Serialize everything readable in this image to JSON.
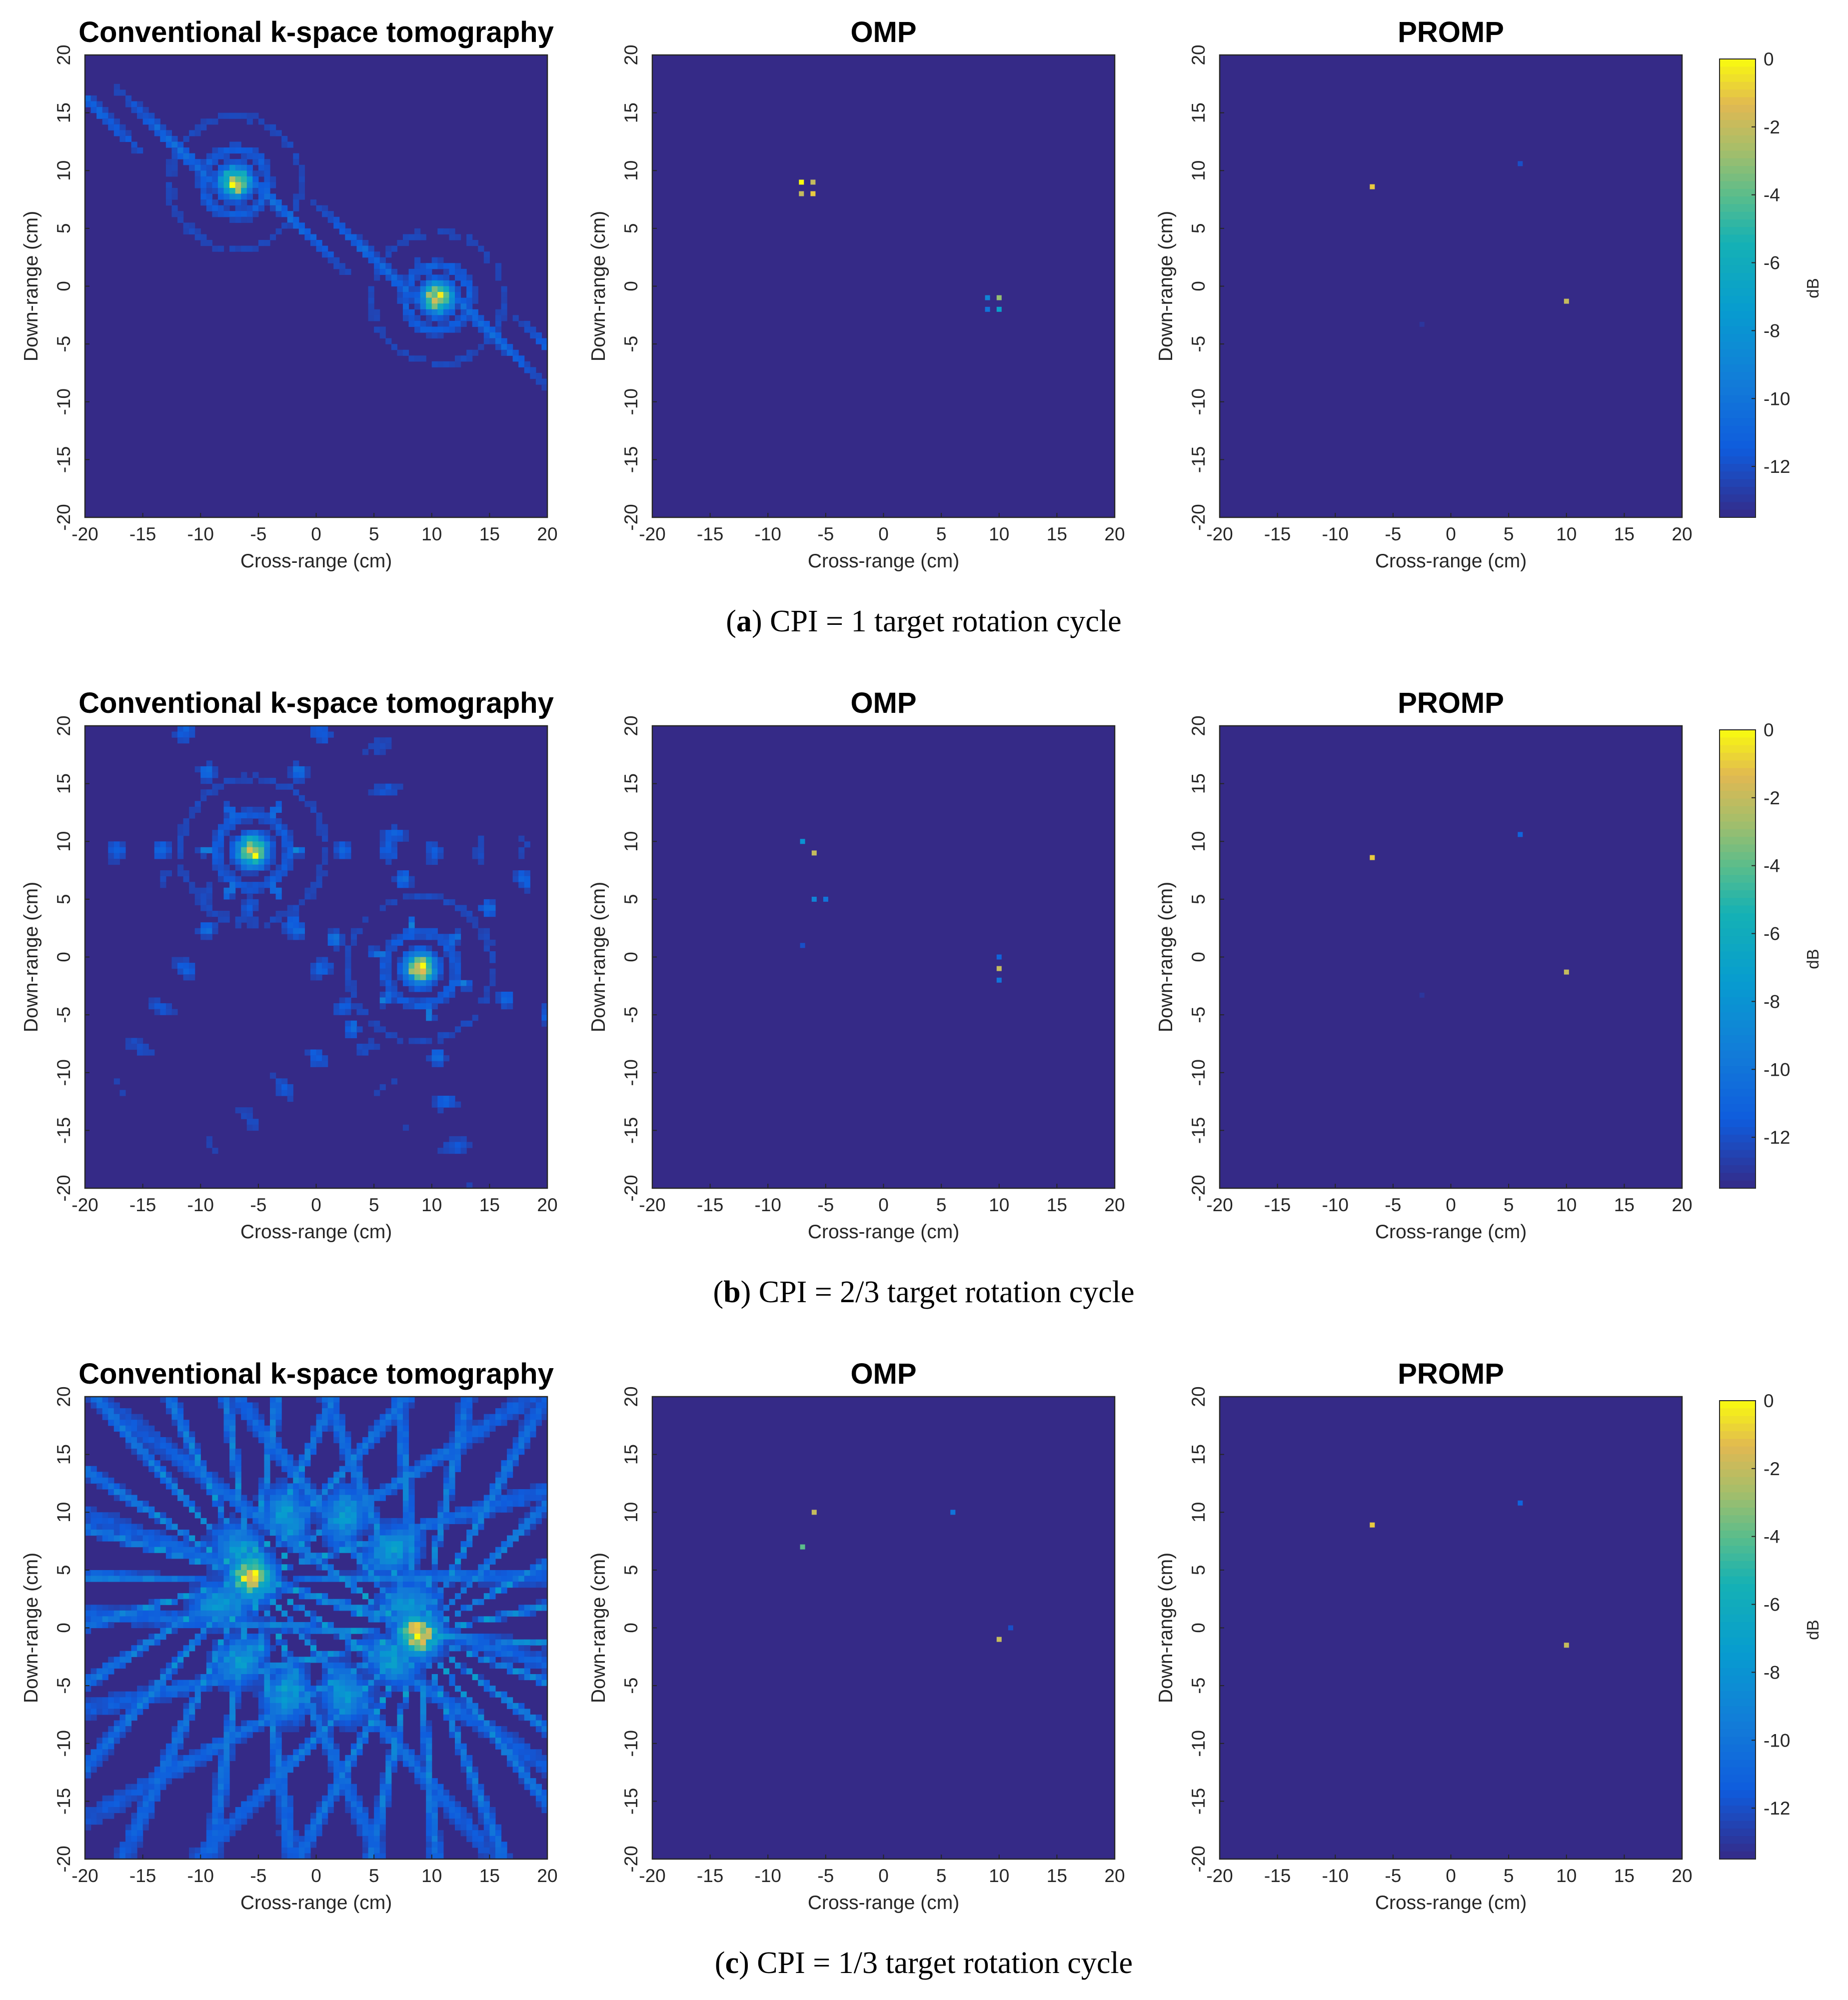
{
  "rows": [
    {
      "caption_tag": "a",
      "caption_text": "CPI = 1 target rotation cycle",
      "panels": [
        {
          "title": "Conventional k-space tomography",
          "mode": "conventional",
          "scatterers": [
            [
              -7,
              9
            ],
            [
              10.5,
              -1
            ]
          ],
          "variant": 1
        },
        {
          "title": "OMP",
          "mode": "sparse",
          "points": [
            [
              -7.1,
              9,
              0
            ],
            [
              -6.1,
              9,
              -2
            ],
            [
              -7.1,
              8,
              -2
            ],
            [
              -6.1,
              8,
              -1
            ],
            [
              9,
              -1,
              -9
            ],
            [
              10,
              -1,
              -3
            ],
            [
              9,
              -2,
              -10
            ],
            [
              10,
              -2,
              -7
            ]
          ]
        },
        {
          "title": "PROMP",
          "mode": "sparse",
          "points": [
            [
              -6.8,
              8.6,
              -1
            ],
            [
              10,
              -1.3,
              -2
            ],
            [
              6,
              10.6,
              -12
            ],
            [
              -2.5,
              -3.3,
              -13
            ]
          ]
        }
      ]
    },
    {
      "caption_tag": "b",
      "caption_text": "CPI = 2/3 target rotation cycle",
      "panels": [
        {
          "title": "Conventional k-space tomography",
          "mode": "conventional",
          "scatterers": [
            [
              -5.5,
              9.2
            ],
            [
              9,
              -1
            ]
          ],
          "variant": 2
        },
        {
          "title": "OMP",
          "mode": "sparse",
          "points": [
            [
              -7,
              10,
              -8
            ],
            [
              -6,
              9,
              -2
            ],
            [
              -6,
              5,
              -9
            ],
            [
              -5,
              5,
              -10
            ],
            [
              -7,
              1,
              -12
            ],
            [
              10,
              0,
              -11
            ],
            [
              10,
              -1,
              -2
            ],
            [
              10,
              -2,
              -10
            ]
          ]
        },
        {
          "title": "PROMP",
          "mode": "sparse",
          "points": [
            [
              -6.8,
              8.6,
              -1
            ],
            [
              10,
              -1.3,
              -2
            ],
            [
              6,
              10.6,
              -11
            ],
            [
              -2.5,
              -3.3,
              -13
            ]
          ]
        }
      ]
    },
    {
      "caption_tag": "c",
      "caption_text": "CPI = 1/3 target rotation cycle",
      "panels": [
        {
          "title": "Conventional k-space tomography",
          "mode": "conventional",
          "scatterers": [
            [
              -5.6,
              4.4
            ],
            [
              8.8,
              -0.6
            ]
          ],
          "variant": 3
        },
        {
          "title": "OMP",
          "mode": "sparse",
          "points": [
            [
              -6,
              10,
              -2
            ],
            [
              -7,
              7,
              -4
            ],
            [
              6,
              10,
              -10
            ],
            [
              10,
              -1,
              -2
            ],
            [
              11,
              0,
              -12
            ]
          ]
        },
        {
          "title": "PROMP",
          "mode": "sparse",
          "points": [
            [
              -6.8,
              8.9,
              -1
            ],
            [
              10,
              -1.5,
              -2
            ],
            [
              6,
              10.8,
              -11
            ]
          ]
        }
      ]
    }
  ],
  "axes": {
    "xlabel": "Cross-range (cm)",
    "ylabel": "Down-range (cm)",
    "xlim": [
      -20,
      20
    ],
    "ylim": [
      -20,
      20
    ],
    "ticks": [
      "-20",
      "-15",
      "-10",
      "-5",
      "0",
      "5",
      "10",
      "15",
      "20"
    ]
  },
  "colorbar": {
    "label": "dB",
    "range": [
      -13.5,
      0
    ],
    "ticks": [
      "0",
      "-2",
      "-4",
      "-6",
      "-8",
      "-10",
      "-12"
    ],
    "colormap": "parula",
    "background_color": "#352A87"
  },
  "chart_data": {
    "type": "heatmap",
    "xlabel": "Cross-range (cm)",
    "ylabel": "Down-range (cm)",
    "xlim": [
      -20,
      20
    ],
    "ylim": [
      -20,
      20
    ],
    "clim": [
      -13.5,
      0
    ],
    "colorbar_label": "dB",
    "panel_titles": [
      "Conventional k-space tomography",
      "OMP",
      "PROMP"
    ],
    "captions": [
      "CPI = 1 target rotation cycle",
      "CPI = 2/3 target rotation cycle",
      "CPI = 1/3 target rotation cycle"
    ]
  }
}
